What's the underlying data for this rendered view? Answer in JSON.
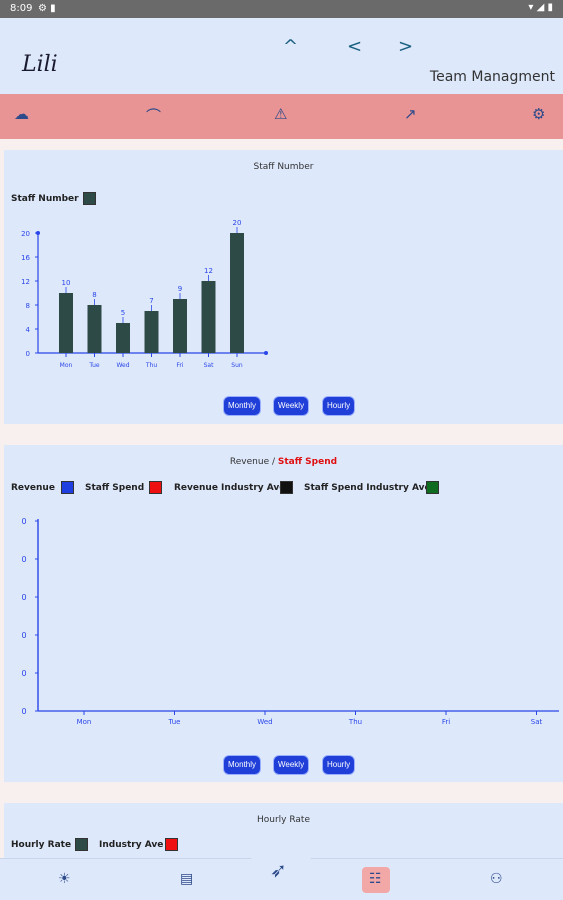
{
  "status_bar": {
    "time": "8:09",
    "icons": "⚙ ▮",
    "right_icons": "▾ ◢ ▮"
  },
  "header": {
    "logo": "Lili",
    "arrows": [
      "^",
      "<",
      ">"
    ],
    "title": "Team Managment"
  },
  "toolbar": {
    "icons": [
      "cloud-sync-icon",
      "hanger-icon",
      "warning-icon",
      "chart-icon",
      "settings-icon"
    ]
  },
  "cards": {
    "staff": {
      "title": "Staff Number",
      "legend": "Staff Number",
      "legend_color": "#2e4a47",
      "buttons": [
        "Monthly",
        "Weekly",
        "Hourly"
      ]
    },
    "revenue": {
      "title_part1": "Revenue /",
      "title_part2": "Staff Spend",
      "legend": [
        {
          "label": "Revenue",
          "color": "#1f3fe0"
        },
        {
          "label": "Staff Spend",
          "color": "#ee1010"
        },
        {
          "label": "Revenue Industry Ave",
          "color": "#111111"
        },
        {
          "label": "Staff Spend Industry Ave",
          "color": "#0f6b1f"
        }
      ],
      "buttons": [
        "Monthly",
        "Weekly",
        "Hourly"
      ]
    },
    "hourly": {
      "title": "Hourly Rate",
      "legend": [
        {
          "label": "Hourly Rate",
          "color": "#2e4a47"
        },
        {
          "label": "Industry Ave",
          "color": "#ee1010"
        }
      ]
    }
  },
  "chart_data": [
    {
      "type": "bar",
      "title": "Staff Number",
      "categories": [
        "Mon",
        "Tue",
        "Wed",
        "Thu",
        "Fri",
        "Sat",
        "Sun"
      ],
      "series": [
        {
          "name": "Staff Number",
          "values": [
            10,
            8,
            5,
            7,
            9,
            12,
            20
          ]
        }
      ],
      "yticks": [
        "0",
        "4",
        "8",
        "12",
        "16",
        "20"
      ],
      "ylim": [
        0,
        20
      ],
      "color": "#2e4a47"
    },
    {
      "type": "line",
      "title": "Revenue / Staff Spend",
      "categories": [
        "Mon",
        "Tue",
        "Wed",
        "Thu",
        "Fri",
        "Sat"
      ],
      "yticks": [
        "0",
        "0",
        "0",
        "0",
        "0",
        "0"
      ],
      "series": []
    }
  ],
  "bottom_nav": {
    "icons": [
      "sun-icon",
      "document-icon",
      "rocket-icon",
      "team-icon",
      "user-settings-icon"
    ]
  }
}
